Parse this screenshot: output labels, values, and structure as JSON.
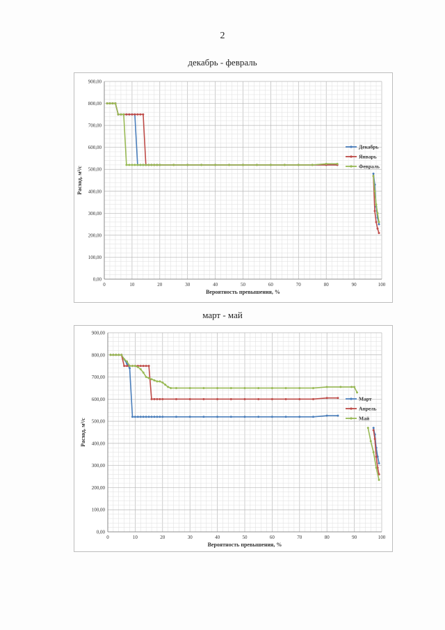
{
  "page": {
    "number": "2"
  },
  "chart_data": [
    {
      "type": "line",
      "title": "декабрь - февраль",
      "xlabel": "Вероятность превышения, %",
      "ylabel": "Расход, м³/с",
      "xlim": [
        0,
        100
      ],
      "ylim": [
        0,
        900
      ],
      "x_ticks": [
        "0",
        "10",
        "20",
        "30",
        "40",
        "50",
        "60",
        "70",
        "80",
        "90",
        "100"
      ],
      "y_ticks": [
        "0,00",
        "100,00",
        "200,00",
        "300,00",
        "400,00",
        "500,00",
        "600,00",
        "700,00",
        "800,00",
        "900,00"
      ],
      "grid": true,
      "legend_position": "right",
      "series": [
        {
          "name": "Декабрь",
          "color": "#4a7ebb",
          "points": [
            [
              1,
              800
            ],
            [
              2,
              800
            ],
            [
              3,
              800
            ],
            [
              4,
              800
            ],
            [
              5,
              750
            ],
            [
              6,
              750
            ],
            [
              7,
              750
            ],
            [
              8,
              750
            ],
            [
              9,
              750
            ],
            [
              10,
              750
            ],
            [
              11,
              750
            ],
            [
              12,
              520
            ],
            [
              13,
              520
            ],
            [
              14,
              520
            ],
            [
              15,
              520
            ],
            [
              16,
              520
            ],
            [
              17,
              520
            ],
            [
              18,
              520
            ],
            [
              19,
              520
            ],
            [
              20,
              520
            ],
            [
              25,
              520
            ],
            [
              30,
              520
            ],
            [
              35,
              520
            ],
            [
              40,
              520
            ],
            [
              45,
              520
            ],
            [
              50,
              520
            ],
            [
              55,
              520
            ],
            [
              60,
              520
            ],
            [
              65,
              520
            ],
            [
              70,
              520
            ],
            [
              75,
              520
            ],
            [
              80,
              520
            ],
            [
              84,
              520
            ]
          ],
          "tail": [
            [
              97,
              480
            ],
            [
              97.5,
              430
            ],
            [
              98,
              330
            ],
            [
              98.5,
              280
            ],
            [
              99,
              250
            ]
          ]
        },
        {
          "name": "Январь",
          "color": "#be4b48",
          "points": [
            [
              1,
              800
            ],
            [
              2,
              800
            ],
            [
              3,
              800
            ],
            [
              4,
              800
            ],
            [
              5,
              750
            ],
            [
              6,
              750
            ],
            [
              7,
              750
            ],
            [
              8,
              750
            ],
            [
              9,
              750
            ],
            [
              10,
              750
            ],
            [
              11,
              750
            ],
            [
              12,
              750
            ],
            [
              13,
              750
            ],
            [
              14,
              750
            ],
            [
              15,
              520
            ],
            [
              16,
              520
            ],
            [
              17,
              520
            ],
            [
              18,
              520
            ],
            [
              19,
              520
            ],
            [
              20,
              520
            ],
            [
              25,
              520
            ],
            [
              30,
              520
            ],
            [
              35,
              520
            ],
            [
              40,
              520
            ],
            [
              45,
              520
            ],
            [
              50,
              520
            ],
            [
              55,
              520
            ],
            [
              60,
              520
            ],
            [
              65,
              520
            ],
            [
              70,
              520
            ],
            [
              75,
              520
            ],
            [
              80,
              520
            ],
            [
              84,
              520
            ]
          ],
          "tail": [
            [
              97,
              470
            ],
            [
              97.5,
              310
            ],
            [
              98,
              260
            ],
            [
              98.5,
              230
            ],
            [
              99,
              210
            ]
          ]
        },
        {
          "name": "Февраль",
          "color": "#98b954",
          "points": [
            [
              1,
              800
            ],
            [
              2,
              800
            ],
            [
              3,
              800
            ],
            [
              4,
              800
            ],
            [
              5,
              750
            ],
            [
              6,
              750
            ],
            [
              7,
              750
            ],
            [
              8,
              520
            ],
            [
              9,
              520
            ],
            [
              10,
              520
            ],
            [
              11,
              520
            ],
            [
              12,
              520
            ],
            [
              13,
              520
            ],
            [
              14,
              520
            ],
            [
              15,
              520
            ],
            [
              16,
              520
            ],
            [
              17,
              520
            ],
            [
              18,
              520
            ],
            [
              19,
              520
            ],
            [
              20,
              520
            ],
            [
              25,
              520
            ],
            [
              30,
              520
            ],
            [
              35,
              520
            ],
            [
              40,
              520
            ],
            [
              45,
              520
            ],
            [
              50,
              520
            ],
            [
              55,
              520
            ],
            [
              60,
              520
            ],
            [
              65,
              520
            ],
            [
              70,
              520
            ],
            [
              75,
              520
            ],
            [
              80,
              525
            ],
            [
              84,
              525
            ]
          ],
          "tail": [
            [
              97,
              470
            ],
            [
              97.5,
              400
            ],
            [
              98,
              340
            ],
            [
              98.5,
              300
            ],
            [
              99,
              260
            ]
          ]
        }
      ]
    },
    {
      "type": "line",
      "title": "март - май",
      "xlabel": "Вероятность превышения, %",
      "ylabel": "Расход, м³/с",
      "xlim": [
        0,
        100
      ],
      "ylim": [
        0,
        900
      ],
      "x_ticks": [
        "0",
        "10",
        "20",
        "30",
        "40",
        "50",
        "60",
        "70",
        "80",
        "90",
        "100"
      ],
      "y_ticks": [
        "0,00",
        "100,00",
        "200,00",
        "300,00",
        "400,00",
        "500,00",
        "600,00",
        "700,00",
        "800,00",
        "900,00"
      ],
      "grid": true,
      "legend_position": "right",
      "series": [
        {
          "name": "Март",
          "color": "#4a7ebb",
          "points": [
            [
              1,
              800
            ],
            [
              2,
              800
            ],
            [
              3,
              800
            ],
            [
              4,
              800
            ],
            [
              5,
              800
            ],
            [
              6,
              780
            ],
            [
              7,
              760
            ],
            [
              8,
              740
            ],
            [
              9,
              520
            ],
            [
              10,
              520
            ],
            [
              11,
              520
            ],
            [
              12,
              520
            ],
            [
              13,
              520
            ],
            [
              14,
              520
            ],
            [
              15,
              520
            ],
            [
              16,
              520
            ],
            [
              17,
              520
            ],
            [
              18,
              520
            ],
            [
              19,
              520
            ],
            [
              20,
              520
            ],
            [
              25,
              520
            ],
            [
              30,
              520
            ],
            [
              35,
              520
            ],
            [
              40,
              520
            ],
            [
              45,
              520
            ],
            [
              50,
              520
            ],
            [
              55,
              520
            ],
            [
              60,
              520
            ],
            [
              65,
              520
            ],
            [
              70,
              520
            ],
            [
              75,
              520
            ],
            [
              80,
              525
            ],
            [
              84,
              525
            ]
          ],
          "tail": [
            [
              97,
              470
            ],
            [
              97.5,
              440
            ],
            [
              98,
              380
            ],
            [
              98.5,
              340
            ],
            [
              99,
              310
            ]
          ]
        },
        {
          "name": "Апрель",
          "color": "#be4b48",
          "points": [
            [
              1,
              800
            ],
            [
              2,
              800
            ],
            [
              3,
              800
            ],
            [
              4,
              800
            ],
            [
              5,
              800
            ],
            [
              6,
              750
            ],
            [
              7,
              750
            ],
            [
              8,
              750
            ],
            [
              9,
              750
            ],
            [
              10,
              750
            ],
            [
              11,
              750
            ],
            [
              12,
              750
            ],
            [
              13,
              750
            ],
            [
              14,
              750
            ],
            [
              15,
              750
            ],
            [
              16,
              600
            ],
            [
              17,
              600
            ],
            [
              18,
              600
            ],
            [
              19,
              600
            ],
            [
              20,
              600
            ],
            [
              25,
              600
            ],
            [
              30,
              600
            ],
            [
              35,
              600
            ],
            [
              40,
              600
            ],
            [
              45,
              600
            ],
            [
              50,
              600
            ],
            [
              55,
              600
            ],
            [
              60,
              600
            ],
            [
              65,
              600
            ],
            [
              70,
              600
            ],
            [
              75,
              600
            ],
            [
              80,
              605
            ],
            [
              84,
              605
            ]
          ],
          "tail": [
            [
              97,
              460
            ],
            [
              97.5,
              420
            ],
            [
              98,
              340
            ],
            [
              98.5,
              290
            ],
            [
              99,
              260
            ]
          ]
        },
        {
          "name": "Май",
          "color": "#98b954",
          "points": [
            [
              1,
              800
            ],
            [
              2,
              800
            ],
            [
              3,
              800
            ],
            [
              4,
              800
            ],
            [
              5,
              800
            ],
            [
              6,
              780
            ],
            [
              7,
              770
            ],
            [
              8,
              750
            ],
            [
              9,
              750
            ],
            [
              10,
              750
            ],
            [
              11,
              745
            ],
            [
              12,
              735
            ],
            [
              13,
              720
            ],
            [
              14,
              700
            ],
            [
              15,
              695
            ],
            [
              16,
              690
            ],
            [
              17,
              685
            ],
            [
              18,
              680
            ],
            [
              19,
              680
            ],
            [
              20,
              675
            ],
            [
              21,
              665
            ],
            [
              22,
              655
            ],
            [
              23,
              650
            ],
            [
              25,
              650
            ],
            [
              30,
              650
            ],
            [
              35,
              650
            ],
            [
              40,
              650
            ],
            [
              45,
              650
            ],
            [
              50,
              650
            ],
            [
              55,
              650
            ],
            [
              60,
              650
            ],
            [
              65,
              650
            ],
            [
              70,
              650
            ],
            [
              75,
              650
            ],
            [
              80,
              655
            ],
            [
              85,
              655
            ],
            [
              89,
              655
            ],
            [
              90,
              655
            ],
            [
              91,
              630
            ]
          ],
          "tail": [
            [
              95,
              470
            ],
            [
              96,
              410
            ],
            [
              97,
              360
            ],
            [
              98,
              290
            ],
            [
              99,
              235
            ]
          ]
        }
      ]
    }
  ]
}
